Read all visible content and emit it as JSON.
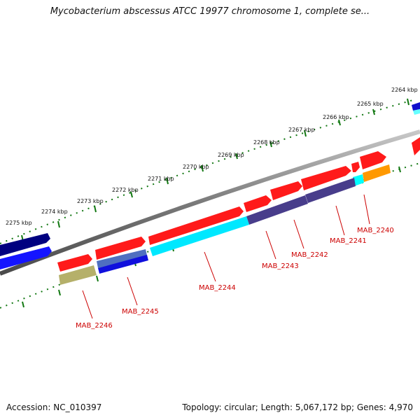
{
  "title": "Mycobacterium abscessus ATCC 19977 chromosome 1, complete se...",
  "footer": {
    "accession": "Accession: NC_010397",
    "summary": "Topology: circular; Length: 5,067,172 bp; Genes: 4,970"
  },
  "kbp_labels": [
    "2264 kbp",
    "2265 kbp",
    "2266 kbp",
    "2267 kbp",
    "2268 kbp",
    "2269 kbp",
    "2270 kbp",
    "2271 kbp",
    "2272 kbp",
    "2273 kbp",
    "2274 kbp",
    "2275 kbp"
  ],
  "gene_labels": [
    "MAB_2240",
    "MAB_2241",
    "MAB_2242",
    "MAB_2243",
    "MAB_2244",
    "MAB_2245",
    "MAB_2246"
  ],
  "colors": {
    "backbone": "#808080",
    "forward_cds": "#ff0000",
    "reverse_cds": "#483d8b",
    "cyan": "#00ffff",
    "orange": "#ff9900",
    "olive": "#b5b06a",
    "blue": "#0000ff",
    "navy": "#000080",
    "tick": "#117711",
    "label": "#cc0000"
  }
}
